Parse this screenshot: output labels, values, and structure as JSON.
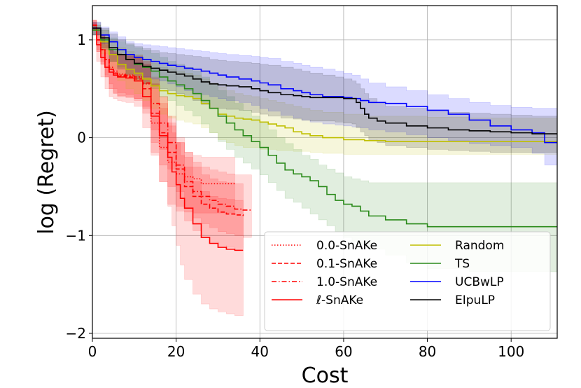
{
  "chart_data": {
    "type": "line",
    "title": "",
    "xlabel": "Cost",
    "ylabel": "log (Regret)",
    "xlim": [
      0,
      111
    ],
    "ylim": [
      -2.05,
      1.35
    ],
    "grid": true,
    "legend_position": "lower-right",
    "xticks": [
      0,
      20,
      40,
      60,
      80,
      100
    ],
    "yticks": [
      -2,
      -1,
      0,
      1
    ],
    "ytick_labels": [
      "−2",
      "−1",
      "0",
      "1"
    ],
    "series": [
      {
        "name": "0.0-SnAKe",
        "color": "#ff0000",
        "dash": "dotted",
        "x": [
          0,
          1,
          2,
          3,
          4,
          5,
          6,
          8,
          10,
          12,
          14,
          16,
          18,
          20,
          22,
          24,
          26,
          28,
          30,
          32,
          34
        ],
        "y": [
          1.15,
          1.0,
          0.9,
          0.8,
          0.72,
          0.68,
          0.65,
          0.64,
          0.62,
          0.55,
          0.15,
          -0.1,
          -0.25,
          -0.37,
          -0.4,
          -0.42,
          -0.47,
          -0.47,
          -0.47,
          -0.47,
          -0.47
        ],
        "upper": [
          1.2,
          1.12,
          1.05,
          0.98,
          0.92,
          0.88,
          0.85,
          0.83,
          0.82,
          0.78,
          0.55,
          0.3,
          0.12,
          -0.05,
          -0.15,
          -0.18,
          -0.2,
          -0.2,
          -0.2,
          -0.2,
          -0.2
        ],
        "lower": [
          1.1,
          0.9,
          0.78,
          0.64,
          0.55,
          0.5,
          0.46,
          0.44,
          0.4,
          0.3,
          -0.15,
          -0.45,
          -0.68,
          -0.75,
          -0.76,
          -0.77,
          -0.77,
          -0.77,
          -0.77,
          -0.77,
          -0.77
        ]
      },
      {
        "name": "0.1-SnAKe",
        "color": "#ff0000",
        "dash": "dashed",
        "x": [
          0,
          1,
          2,
          3,
          4,
          5,
          6,
          8,
          10,
          12,
          14,
          16,
          18,
          20,
          22,
          24,
          26,
          28,
          30,
          32,
          34,
          36
        ],
        "y": [
          1.15,
          1.0,
          0.9,
          0.8,
          0.7,
          0.66,
          0.63,
          0.62,
          0.6,
          0.5,
          0.25,
          0.05,
          -0.15,
          -0.32,
          -0.5,
          -0.6,
          -0.68,
          -0.72,
          -0.76,
          -0.78,
          -0.79,
          -0.8
        ],
        "upper": [
          1.2,
          1.12,
          1.05,
          0.98,
          0.9,
          0.86,
          0.84,
          0.83,
          0.82,
          0.75,
          0.55,
          0.35,
          0.15,
          -0.05,
          -0.2,
          -0.3,
          -0.38,
          -0.42,
          -0.45,
          -0.46,
          -0.47,
          -0.48
        ],
        "lower": [
          1.1,
          0.88,
          0.75,
          0.62,
          0.5,
          0.46,
          0.42,
          0.41,
          0.38,
          0.25,
          -0.05,
          -0.28,
          -0.5,
          -0.7,
          -0.85,
          -0.95,
          -1.02,
          -1.06,
          -1.1,
          -1.12,
          -1.13,
          -1.14
        ]
      },
      {
        "name": "1.0-SnAKe",
        "color": "#ff0000",
        "dash": "dashdot",
        "x": [
          0,
          1,
          2,
          3,
          4,
          5,
          6,
          8,
          10,
          12,
          14,
          16,
          18,
          20,
          22,
          24,
          26,
          28,
          30,
          32,
          34,
          36,
          38
        ],
        "y": [
          1.15,
          1.0,
          0.9,
          0.8,
          0.7,
          0.66,
          0.64,
          0.63,
          0.62,
          0.56,
          0.35,
          0.15,
          -0.05,
          -0.28,
          -0.45,
          -0.55,
          -0.6,
          -0.64,
          -0.68,
          -0.7,
          -0.73,
          -0.74,
          -0.74
        ],
        "upper": [
          1.2,
          1.12,
          1.05,
          0.98,
          0.9,
          0.87,
          0.85,
          0.84,
          0.83,
          0.78,
          0.62,
          0.42,
          0.22,
          0.0,
          -0.15,
          -0.25,
          -0.3,
          -0.33,
          -0.35,
          -0.37,
          -0.38,
          -0.38,
          -0.38
        ],
        "lower": [
          1.1,
          0.88,
          0.75,
          0.62,
          0.5,
          0.45,
          0.43,
          0.42,
          0.4,
          0.32,
          0.08,
          -0.12,
          -0.32,
          -0.55,
          -0.72,
          -0.82,
          -0.88,
          -0.92,
          -0.96,
          -0.98,
          -1.0,
          -1.02,
          -1.02
        ]
      },
      {
        "name": "ℓ-SnAKe",
        "color": "#ff0000",
        "dash": "solid",
        "x": [
          0,
          1,
          2,
          3,
          4,
          5,
          6,
          7,
          8,
          10,
          12,
          14,
          16,
          18,
          19,
          20,
          21,
          22,
          24,
          26,
          28,
          30,
          32,
          34,
          36
        ],
        "y": [
          1.12,
          0.95,
          0.82,
          0.72,
          0.67,
          0.64,
          0.62,
          0.62,
          0.61,
          0.58,
          0.42,
          0.22,
          0.02,
          -0.2,
          -0.35,
          -0.48,
          -0.62,
          -0.72,
          -0.88,
          -1.02,
          -1.08,
          -1.12,
          -1.14,
          -1.15,
          -1.15
        ],
        "upper": [
          1.18,
          1.1,
          1.02,
          0.95,
          0.9,
          0.88,
          0.86,
          0.85,
          0.85,
          0.84,
          0.75,
          0.6,
          0.42,
          0.22,
          0.05,
          -0.05,
          -0.18,
          -0.3,
          -0.45,
          -0.55,
          -0.6,
          -0.62,
          -0.63,
          -0.64,
          -0.64
        ],
        "lower": [
          1.05,
          0.78,
          0.62,
          0.5,
          0.42,
          0.4,
          0.38,
          0.37,
          0.36,
          0.32,
          0.1,
          -0.18,
          -0.45,
          -0.7,
          -0.9,
          -1.1,
          -1.3,
          -1.45,
          -1.6,
          -1.7,
          -1.75,
          -1.78,
          -1.8,
          -1.82,
          -1.82
        ]
      },
      {
        "name": "Random",
        "color": "#bfbf00",
        "dash": "solid",
        "x": [
          0,
          2,
          4,
          6,
          8,
          10,
          12,
          14,
          16,
          18,
          20,
          22,
          24,
          26,
          28,
          30,
          32,
          34,
          36,
          38,
          40,
          42,
          44,
          46,
          48,
          50,
          52,
          55,
          60,
          65,
          70,
          80,
          90,
          100,
          111
        ],
        "y": [
          1.1,
          0.98,
          0.85,
          0.75,
          0.7,
          0.66,
          0.6,
          0.53,
          0.48,
          0.45,
          0.43,
          0.42,
          0.4,
          0.35,
          0.3,
          0.24,
          0.22,
          0.2,
          0.19,
          0.18,
          0.16,
          0.14,
          0.12,
          0.1,
          0.06,
          0.04,
          0.02,
          0.0,
          -0.02,
          -0.03,
          -0.04,
          -0.04,
          -0.04,
          -0.04,
          -0.04
        ],
        "upper": [
          1.15,
          1.1,
          1.0,
          0.92,
          0.88,
          0.85,
          0.8,
          0.76,
          0.72,
          0.7,
          0.68,
          0.66,
          0.64,
          0.6,
          0.56,
          0.52,
          0.48,
          0.45,
          0.43,
          0.42,
          0.4,
          0.38,
          0.36,
          0.34,
          0.32,
          0.3,
          0.28,
          0.26,
          0.24,
          0.22,
          0.22,
          0.21,
          0.2,
          0.2,
          0.2
        ],
        "lower": [
          1.05,
          0.86,
          0.7,
          0.58,
          0.5,
          0.45,
          0.38,
          0.3,
          0.24,
          0.2,
          0.18,
          0.16,
          0.14,
          0.1,
          0.05,
          -0.02,
          -0.05,
          -0.08,
          -0.1,
          -0.1,
          -0.12,
          -0.12,
          -0.13,
          -0.13,
          -0.14,
          -0.14,
          -0.15,
          -0.16,
          -0.17,
          -0.17,
          -0.17,
          -0.17,
          -0.17,
          -0.17,
          -0.17
        ]
      },
      {
        "name": "TS",
        "color": "#2a8a1a",
        "dash": "solid",
        "x": [
          0,
          2,
          4,
          6,
          8,
          10,
          12,
          14,
          16,
          18,
          20,
          22,
          24,
          26,
          28,
          30,
          32,
          34,
          36,
          38,
          40,
          42,
          44,
          46,
          48,
          50,
          52,
          54,
          56,
          58,
          60,
          62,
          64,
          66,
          70,
          75,
          80,
          90,
          100,
          111
        ],
        "y": [
          1.1,
          1.0,
          0.9,
          0.85,
          0.8,
          0.75,
          0.72,
          0.68,
          0.62,
          0.58,
          0.54,
          0.5,
          0.45,
          0.38,
          0.3,
          0.22,
          0.15,
          0.08,
          0.02,
          -0.04,
          -0.1,
          -0.18,
          -0.26,
          -0.33,
          -0.37,
          -0.4,
          -0.44,
          -0.5,
          -0.58,
          -0.64,
          -0.68,
          -0.7,
          -0.75,
          -0.8,
          -0.84,
          -0.88,
          -0.91,
          -0.91,
          -0.91,
          -0.91
        ],
        "upper": [
          1.15,
          1.1,
          1.02,
          0.98,
          0.95,
          0.92,
          0.89,
          0.86,
          0.82,
          0.78,
          0.75,
          0.72,
          0.68,
          0.62,
          0.55,
          0.48,
          0.42,
          0.35,
          0.28,
          0.22,
          0.15,
          0.08,
          0.0,
          -0.06,
          -0.12,
          -0.18,
          -0.22,
          -0.28,
          -0.32,
          -0.36,
          -0.4,
          -0.42,
          -0.44,
          -0.46,
          -0.46,
          -0.46,
          -0.46,
          -0.46,
          -0.46,
          -0.46
        ],
        "lower": [
          1.05,
          0.9,
          0.78,
          0.72,
          0.65,
          0.58,
          0.55,
          0.5,
          0.42,
          0.38,
          0.33,
          0.28,
          0.22,
          0.14,
          0.05,
          -0.04,
          -0.12,
          -0.2,
          -0.26,
          -0.32,
          -0.38,
          -0.46,
          -0.54,
          -0.62,
          -0.66,
          -0.72,
          -0.78,
          -0.84,
          -0.9,
          -0.96,
          -1.02,
          -1.06,
          -1.1,
          -1.14,
          -1.2,
          -1.28,
          -1.34,
          -1.37,
          -1.37,
          -1.37
        ]
      },
      {
        "name": "UCBwLP",
        "color": "#0000ff",
        "dash": "solid",
        "x": [
          0,
          2,
          4,
          6,
          8,
          10,
          12,
          14,
          16,
          18,
          20,
          22,
          24,
          26,
          28,
          30,
          32,
          35,
          38,
          40,
          42,
          45,
          48,
          50,
          52,
          55,
          58,
          60,
          62,
          64,
          66,
          70,
          75,
          80,
          85,
          90,
          95,
          100,
          105,
          108,
          111
        ],
        "y": [
          1.12,
          1.05,
          0.98,
          0.9,
          0.85,
          0.82,
          0.8,
          0.78,
          0.76,
          0.74,
          0.73,
          0.71,
          0.7,
          0.68,
          0.66,
          0.64,
          0.62,
          0.6,
          0.58,
          0.56,
          0.54,
          0.5,
          0.48,
          0.46,
          0.44,
          0.42,
          0.42,
          0.41,
          0.4,
          0.38,
          0.36,
          0.35,
          0.32,
          0.28,
          0.24,
          0.18,
          0.12,
          0.08,
          0.05,
          -0.05,
          -0.05
        ],
        "upper": [
          1.18,
          1.13,
          1.08,
          1.03,
          0.98,
          0.96,
          0.95,
          0.94,
          0.93,
          0.92,
          0.91,
          0.9,
          0.89,
          0.88,
          0.87,
          0.86,
          0.85,
          0.84,
          0.83,
          0.82,
          0.81,
          0.78,
          0.76,
          0.74,
          0.72,
          0.7,
          0.68,
          0.66,
          0.64,
          0.6,
          0.56,
          0.52,
          0.48,
          0.44,
          0.4,
          0.36,
          0.33,
          0.31,
          0.3,
          0.3,
          0.3
        ],
        "lower": [
          1.05,
          0.96,
          0.86,
          0.76,
          0.7,
          0.66,
          0.62,
          0.6,
          0.58,
          0.55,
          0.52,
          0.48,
          0.46,
          0.44,
          0.42,
          0.4,
          0.38,
          0.36,
          0.33,
          0.3,
          0.27,
          0.23,
          0.2,
          0.18,
          0.16,
          0.14,
          0.13,
          0.12,
          0.11,
          0.1,
          0.08,
          0.06,
          0.03,
          0.0,
          -0.03,
          -0.06,
          -0.08,
          -0.1,
          -0.16,
          -0.28,
          -0.3
        ]
      },
      {
        "name": "EIpuLP",
        "color": "#000000",
        "dash": "solid",
        "x": [
          0,
          2,
          4,
          6,
          8,
          10,
          12,
          14,
          16,
          18,
          20,
          22,
          24,
          26,
          28,
          30,
          32,
          35,
          38,
          40,
          42,
          45,
          48,
          50,
          52,
          55,
          58,
          60,
          62,
          63,
          64,
          65,
          66,
          68,
          70,
          75,
          80,
          85,
          90,
          95,
          100,
          105,
          111
        ],
        "y": [
          1.12,
          1.02,
          0.92,
          0.85,
          0.8,
          0.76,
          0.73,
          0.71,
          0.69,
          0.67,
          0.65,
          0.63,
          0.6,
          0.57,
          0.55,
          0.54,
          0.53,
          0.52,
          0.5,
          0.48,
          0.46,
          0.44,
          0.43,
          0.42,
          0.41,
          0.41,
          0.41,
          0.4,
          0.4,
          0.36,
          0.3,
          0.24,
          0.2,
          0.17,
          0.15,
          0.12,
          0.1,
          0.08,
          0.07,
          0.06,
          0.05,
          0.04,
          0.04
        ],
        "upper": [
          1.18,
          1.12,
          1.06,
          1.0,
          0.96,
          0.93,
          0.91,
          0.89,
          0.87,
          0.86,
          0.85,
          0.84,
          0.83,
          0.82,
          0.8,
          0.79,
          0.78,
          0.77,
          0.76,
          0.75,
          0.74,
          0.72,
          0.7,
          0.68,
          0.66,
          0.64,
          0.62,
          0.6,
          0.58,
          0.55,
          0.5,
          0.45,
          0.4,
          0.36,
          0.32,
          0.3,
          0.28,
          0.26,
          0.25,
          0.24,
          0.23,
          0.22,
          0.22
        ],
        "lower": [
          1.05,
          0.92,
          0.78,
          0.7,
          0.64,
          0.6,
          0.55,
          0.53,
          0.5,
          0.48,
          0.45,
          0.42,
          0.38,
          0.34,
          0.31,
          0.3,
          0.29,
          0.28,
          0.26,
          0.24,
          0.22,
          0.2,
          0.19,
          0.18,
          0.17,
          0.17,
          0.16,
          0.15,
          0.14,
          0.1,
          0.06,
          0.02,
          -0.02,
          -0.05,
          -0.08,
          -0.1,
          -0.12,
          -0.13,
          -0.14,
          -0.15,
          -0.15,
          -0.15,
          -0.15
        ]
      }
    ]
  }
}
